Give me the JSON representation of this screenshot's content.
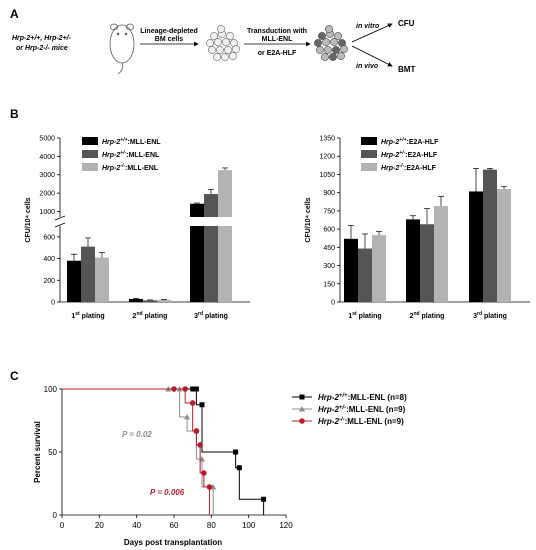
{
  "panels": {
    "a": "A",
    "b": "B",
    "c": "C"
  },
  "schematic": {
    "mice_line1": "Hrp-2+/+, Hrp-2+/-",
    "mice_line2": "or Hrp-2-/- mice",
    "step1_line1": "Lineage-depleted",
    "step1_line2": "BM cells",
    "step2_line1": "Transduction with",
    "step2_line2": "MLL-ENL",
    "step2_line3": "or E2A-HLF",
    "in_vitro": "in vitro",
    "in_vivo": "in vivo",
    "cfu": "CFU",
    "bmt": "BMT"
  },
  "colors": {
    "wt": "#000000",
    "het": "#555555",
    "ko": "#b3b3b3",
    "red": "#b81c2c",
    "grey_p": "#8c8c8c"
  },
  "chart_data": [
    {
      "type": "bar",
      "ylabel": "CFU/10⁴ cells",
      "categories": [
        "1st plating",
        "2nd plating",
        "3rd plating"
      ],
      "y_ticks_lower": [
        "0",
        "200",
        "400",
        "600"
      ],
      "y_ticks_upper": [
        "1000",
        "2000",
        "3000",
        "4000",
        "5000"
      ],
      "broken_axis": true,
      "series": [
        {
          "name": "Hrp-2+/+:MLL-ENL",
          "values": [
            380,
            28,
            1420
          ],
          "errors": [
            60,
            4,
            40
          ]
        },
        {
          "name": "Hrp-2+/-:MLL-ENL",
          "values": [
            510,
            15,
            1950
          ],
          "errors": [
            80,
            4,
            250
          ]
        },
        {
          "name": "Hrp-2-/-:MLL-ENL",
          "values": [
            410,
            20,
            3250
          ],
          "errors": [
            45,
            4,
            120
          ]
        }
      ]
    },
    {
      "type": "bar",
      "ylabel": "CFU/10⁴ cells",
      "categories": [
        "1st plating",
        "2nd plating",
        "3rd plating"
      ],
      "y_ticks": [
        "0",
        "150",
        "300",
        "450",
        "600",
        "750",
        "900",
        "1050",
        "1200",
        "1350"
      ],
      "ylim": [
        0,
        1350
      ],
      "series": [
        {
          "name": "Hrp-2+/+:E2A-HLF",
          "values": [
            520,
            680,
            910
          ],
          "errors": [
            110,
            30,
            190
          ]
        },
        {
          "name": "Hrp-2+/-:E2A-HLF",
          "values": [
            440,
            640,
            1090
          ],
          "errors": [
            120,
            130,
            10
          ]
        },
        {
          "name": "Hrp-2-/-:E2A-HLF",
          "values": [
            550,
            790,
            930
          ],
          "errors": [
            30,
            80,
            20
          ]
        }
      ]
    },
    {
      "type": "line",
      "subtype": "kaplan-meier",
      "xlabel": "Days post transplantation",
      "ylabel": "Percent survival",
      "xlim": [
        0,
        120
      ],
      "ylim": [
        0,
        100
      ],
      "x_ticks": [
        "0",
        "20",
        "40",
        "60",
        "80",
        "100",
        "120"
      ],
      "y_ticks": [
        "0",
        "50",
        "100"
      ],
      "series": [
        {
          "name": "Hrp-2+/+:MLL-ENL (n=8)",
          "color": "#000000",
          "marker": "square",
          "x": [
            0,
            70,
            72,
            75,
            93,
            95,
            108
          ],
          "y": [
            100,
            100,
            87.5,
            50,
            37.5,
            12.5,
            0
          ]
        },
        {
          "name": "Hrp-2+/-:MLL-ENL (n=9)",
          "color": "#8c8c8c",
          "marker": "triangle",
          "x": [
            0,
            57,
            63,
            67,
            72,
            75,
            81
          ],
          "y": [
            100,
            100,
            77.8,
            66.7,
            44.4,
            22.2,
            0
          ]
        },
        {
          "name": "Hrp-2-/-:MLL-ENL (n=9)",
          "color": "#b81c2c",
          "marker": "circle",
          "x": [
            0,
            60,
            66,
            70,
            72,
            74,
            76,
            79
          ],
          "y": [
            100,
            100,
            88.9,
            66.7,
            55.6,
            33.3,
            22.2,
            0
          ]
        }
      ],
      "annotations": [
        "P = 0.02",
        "P = 0.006"
      ]
    }
  ]
}
